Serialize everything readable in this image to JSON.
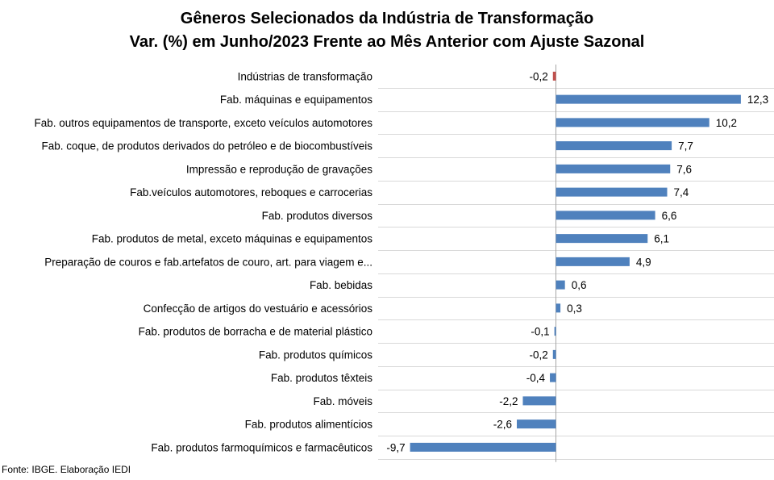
{
  "chart_data": {
    "type": "bar",
    "orientation": "horizontal",
    "title": "Gêneros Selecionados da Indústria de Transformação",
    "subtitle": "Var. (%) em Junho/2023 Frente ao Mês Anterior com Ajuste Sazonal",
    "xlabel": "",
    "ylabel": "",
    "xlim": [
      -10,
      13
    ],
    "grid": "horizontal",
    "legend": "none",
    "categories": [
      "Indústrias de transformação",
      "Fab. máquinas e equipamentos",
      "Fab. outros equipamentos de transporte, exceto veículos automotores",
      "Fab. coque, de produtos derivados do petróleo e de biocombustíveis",
      "Impressão e reprodução de gravações",
      "Fab.veículos automotores, reboques e carrocerias",
      "Fab. produtos diversos",
      "Fab. produtos de metal, exceto máquinas e equipamentos",
      "Preparação de couros e fab.artefatos de couro, art. para viagem e...",
      "Fab. bebidas",
      "Confecção de artigos do vestuário e acessórios",
      "Fab. produtos de borracha e de material plástico",
      "Fab. produtos químicos",
      "Fab. produtos têxteis",
      "Fab. móveis",
      "Fab. produtos alimentícios",
      "Fab. produtos farmoquímicos e farmacêuticos"
    ],
    "values": [
      -0.2,
      12.3,
      10.2,
      7.7,
      7.6,
      7.4,
      6.6,
      6.1,
      4.9,
      0.6,
      0.3,
      -0.1,
      -0.2,
      -0.4,
      -2.2,
      -2.6,
      -9.7
    ],
    "labels": [
      "-0,2",
      "12,3",
      "10,2",
      "7,7",
      "7,6",
      "7,4",
      "6,6",
      "6,1",
      "4,9",
      "0,6",
      "0,3",
      "-0,1",
      "-0,2",
      "-0,4",
      "-2,2",
      "-2,6",
      "-9,7"
    ],
    "highlight_index": 0,
    "colors": {
      "bar": "#4f81bd",
      "highlight": "#c0504d",
      "grid": "#d9d9d9",
      "axis": "#a6a6a6"
    }
  },
  "footnote": "Fonte: IBGE. Elaboração IEDI"
}
